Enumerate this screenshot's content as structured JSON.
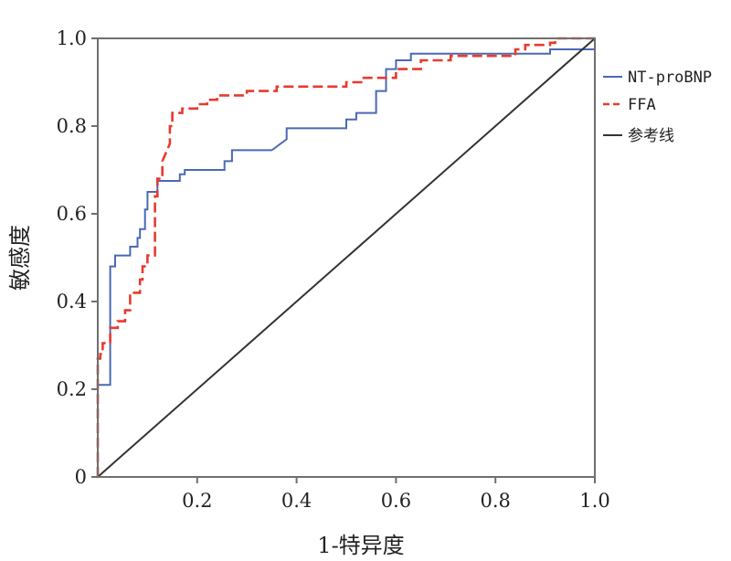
{
  "chart_data": {
    "type": "line",
    "title": "",
    "xlabel": "1-特异度",
    "ylabel": "敏感度",
    "xlim": [
      0,
      1
    ],
    "ylim": [
      0,
      1
    ],
    "xticks": [
      0.2,
      0.4,
      0.6,
      0.8,
      1.0
    ],
    "xtick_labels": [
      "0.2",
      "0.4",
      "0.6",
      "0.8",
      "1.0"
    ],
    "yticks": [
      0,
      0.2,
      0.4,
      0.6,
      0.8,
      1.0
    ],
    "ytick_labels": [
      "0",
      "0.2",
      "0.4",
      "0.6",
      "0.8",
      "1.0"
    ],
    "grid": false,
    "legend_position": "right",
    "series": [
      {
        "name": "NT-proBNP",
        "color": "#4a69b3",
        "style": "solid",
        "points": [
          [
            0,
            0
          ],
          [
            0,
            0.21
          ],
          [
            0.025,
            0.21
          ],
          [
            0.025,
            0.48
          ],
          [
            0.035,
            0.48
          ],
          [
            0.035,
            0.505
          ],
          [
            0.065,
            0.505
          ],
          [
            0.065,
            0.525
          ],
          [
            0.08,
            0.525
          ],
          [
            0.08,
            0.545
          ],
          [
            0.085,
            0.545
          ],
          [
            0.085,
            0.565
          ],
          [
            0.095,
            0.565
          ],
          [
            0.095,
            0.61
          ],
          [
            0.1,
            0.61
          ],
          [
            0.1,
            0.65
          ],
          [
            0.12,
            0.65
          ],
          [
            0.12,
            0.675
          ],
          [
            0.165,
            0.675
          ],
          [
            0.165,
            0.69
          ],
          [
            0.175,
            0.69
          ],
          [
            0.175,
            0.7
          ],
          [
            0.255,
            0.7
          ],
          [
            0.255,
            0.72
          ],
          [
            0.27,
            0.72
          ],
          [
            0.27,
            0.745
          ],
          [
            0.35,
            0.745
          ],
          [
            0.38,
            0.77
          ],
          [
            0.38,
            0.795
          ],
          [
            0.5,
            0.795
          ],
          [
            0.5,
            0.815
          ],
          [
            0.52,
            0.815
          ],
          [
            0.52,
            0.83
          ],
          [
            0.56,
            0.83
          ],
          [
            0.56,
            0.88
          ],
          [
            0.58,
            0.88
          ],
          [
            0.58,
            0.93
          ],
          [
            0.6,
            0.93
          ],
          [
            0.6,
            0.95
          ],
          [
            0.63,
            0.95
          ],
          [
            0.63,
            0.965
          ],
          [
            0.91,
            0.965
          ],
          [
            0.91,
            0.975
          ],
          [
            1,
            0.975
          ],
          [
            1,
            1
          ]
        ]
      },
      {
        "name": "FFA",
        "color": "#e83a2f",
        "style": "dashed",
        "points": [
          [
            0,
            0
          ],
          [
            0,
            0.27
          ],
          [
            0.005,
            0.27
          ],
          [
            0.005,
            0.28
          ],
          [
            0.01,
            0.28
          ],
          [
            0.01,
            0.305
          ],
          [
            0.025,
            0.305
          ],
          [
            0.025,
            0.34
          ],
          [
            0.04,
            0.34
          ],
          [
            0.04,
            0.355
          ],
          [
            0.055,
            0.355
          ],
          [
            0.055,
            0.38
          ],
          [
            0.065,
            0.38
          ],
          [
            0.065,
            0.42
          ],
          [
            0.085,
            0.42
          ],
          [
            0.085,
            0.45
          ],
          [
            0.09,
            0.45
          ],
          [
            0.09,
            0.48
          ],
          [
            0.1,
            0.48
          ],
          [
            0.1,
            0.505
          ],
          [
            0.115,
            0.505
          ],
          [
            0.115,
            0.64
          ],
          [
            0.12,
            0.64
          ],
          [
            0.12,
            0.68
          ],
          [
            0.13,
            0.68
          ],
          [
            0.13,
            0.72
          ],
          [
            0.145,
            0.76
          ],
          [
            0.145,
            0.8
          ],
          [
            0.15,
            0.8
          ],
          [
            0.15,
            0.83
          ],
          [
            0.17,
            0.83
          ],
          [
            0.17,
            0.84
          ],
          [
            0.2,
            0.84
          ],
          [
            0.2,
            0.85
          ],
          [
            0.22,
            0.85
          ],
          [
            0.22,
            0.86
          ],
          [
            0.24,
            0.86
          ],
          [
            0.24,
            0.87
          ],
          [
            0.3,
            0.87
          ],
          [
            0.3,
            0.88
          ],
          [
            0.36,
            0.88
          ],
          [
            0.36,
            0.89
          ],
          [
            0.5,
            0.89
          ],
          [
            0.5,
            0.9
          ],
          [
            0.53,
            0.9
          ],
          [
            0.53,
            0.91
          ],
          [
            0.6,
            0.91
          ],
          [
            0.6,
            0.93
          ],
          [
            0.65,
            0.93
          ],
          [
            0.65,
            0.95
          ],
          [
            0.71,
            0.95
          ],
          [
            0.71,
            0.96
          ],
          [
            0.84,
            0.96
          ],
          [
            0.84,
            0.975
          ],
          [
            0.86,
            0.975
          ],
          [
            0.86,
            0.985
          ],
          [
            0.91,
            0.985
          ],
          [
            0.91,
            0.99
          ],
          [
            0.92,
            0.99
          ],
          [
            0.92,
            1.0
          ],
          [
            1,
            1.0
          ]
        ]
      },
      {
        "name": "参考线",
        "color": "#333333",
        "style": "solid",
        "points": [
          [
            0,
            0
          ],
          [
            1,
            1
          ]
        ]
      }
    ]
  }
}
